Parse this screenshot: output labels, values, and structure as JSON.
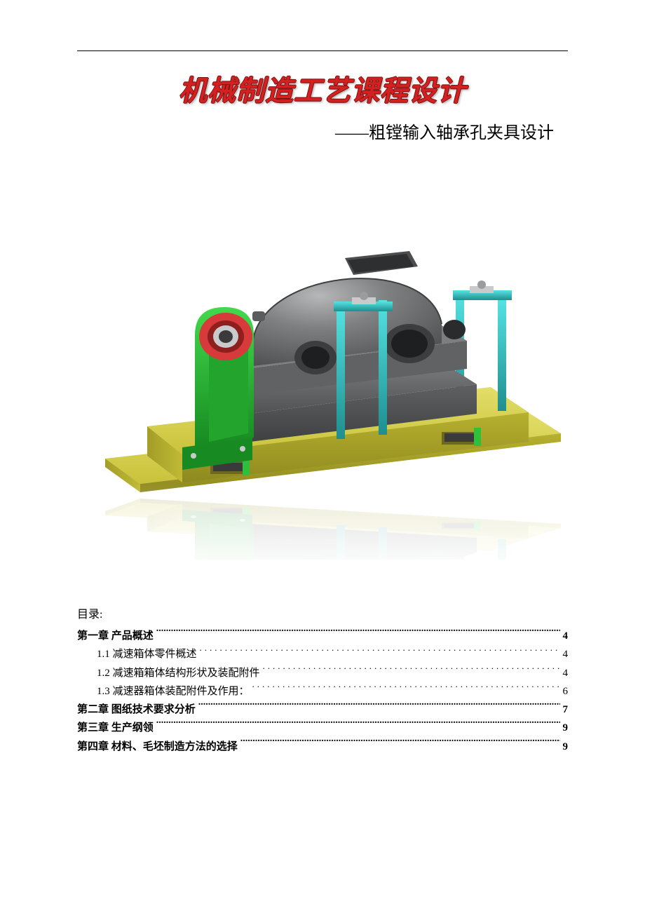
{
  "title": "机械制造工艺课程设计",
  "subtitle": "——粗镗输入轴承孔夹具设计",
  "title_color": "#d32020",
  "title_outline": "#7a0f0f",
  "toc_heading": "目录:",
  "toc": [
    {
      "level": 1,
      "label": "第一章  产品概述",
      "page": "4",
      "leader": "bold"
    },
    {
      "level": 2,
      "label": "1.1 减速箱体零件概述",
      "page": "4",
      "leader": "thin"
    },
    {
      "level": 2,
      "label": "1.2 减速箱箱体结构形状及装配附件",
      "page": "4",
      "leader": "thin"
    },
    {
      "level": 2,
      "label": "1.3 减速器箱体装配附件及作用：",
      "page": "6",
      "leader": "thin"
    },
    {
      "level": 1,
      "label": "第二章  图纸技术要求分析",
      "page": "7",
      "leader": "bold"
    },
    {
      "level": 1,
      "label": "第三章  生产纲领",
      "page": "9",
      "leader": "bold"
    },
    {
      "level": 1,
      "label": "第四章 材料、毛坯制造方法的选择",
      "page": "9",
      "leader": "bold"
    }
  ],
  "figure": {
    "type": "infographic",
    "description": "3D CAD render of a gearbox housing fixture on a yellow base plate",
    "background_color": "#ffffff",
    "colors": {
      "base_plate": "#c9c23a",
      "base_plate_highlight": "#e2de6a",
      "base_plate_shadow": "#8e891f",
      "housing_top": "#6c6e70",
      "housing_top_light": "#9a9c9e",
      "housing_top_dark": "#4b4d4f",
      "housing_base": "#595b5d",
      "bracket_green": "#2fbf3a",
      "bracket_green_dark": "#178a22",
      "ring_red": "#d63a3a",
      "clamp_cyan": "#34c8c8",
      "clamp_cyan_dark": "#1f8e8e",
      "bolt_grey": "#c9cacb",
      "slot_shadow": "#6d6820"
    },
    "reflection_opacity": 0.18
  }
}
